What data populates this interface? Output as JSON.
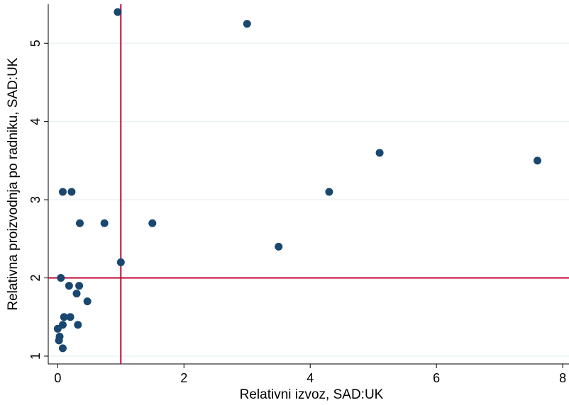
{
  "colors": {
    "point": "#1a476f",
    "reference_line": "#c10534",
    "grid": "#eaf2f3",
    "axis": "#000000",
    "background": "#ffffff"
  },
  "chart_data": {
    "type": "scatter",
    "title": "",
    "xlabel": "Relativni izvoz, SAD:UK",
    "ylabel": "Relativna proizvodnja po radniku, SAD:UK",
    "xlim": [
      -0.15,
      8.1
    ],
    "ylim": [
      0.9,
      5.5
    ],
    "xticks": [
      0,
      2,
      4,
      6,
      8
    ],
    "yticks": [
      1,
      2,
      3,
      4,
      5
    ],
    "grid": "horizontal",
    "reference_lines": {
      "x": 1,
      "y": 2
    },
    "points": [
      {
        "x": 0.95,
        "y": 5.4
      },
      {
        "x": 3.0,
        "y": 5.25
      },
      {
        "x": 5.1,
        "y": 3.6
      },
      {
        "x": 7.6,
        "y": 3.5
      },
      {
        "x": 0.08,
        "y": 3.1
      },
      {
        "x": 0.22,
        "y": 3.1
      },
      {
        "x": 4.3,
        "y": 3.1
      },
      {
        "x": 0.35,
        "y": 2.7
      },
      {
        "x": 0.74,
        "y": 2.7
      },
      {
        "x": 1.5,
        "y": 2.7
      },
      {
        "x": 3.5,
        "y": 2.4
      },
      {
        "x": 1.0,
        "y": 2.2
      },
      {
        "x": 0.05,
        "y": 2.0
      },
      {
        "x": 0.18,
        "y": 1.9
      },
      {
        "x": 0.34,
        "y": 1.9
      },
      {
        "x": 0.3,
        "y": 1.8
      },
      {
        "x": 0.47,
        "y": 1.7
      },
      {
        "x": 0.1,
        "y": 1.5
      },
      {
        "x": 0.2,
        "y": 1.5
      },
      {
        "x": 0.08,
        "y": 1.4
      },
      {
        "x": 0.32,
        "y": 1.4
      },
      {
        "x": 0.0,
        "y": 1.35
      },
      {
        "x": 0.03,
        "y": 1.25
      },
      {
        "x": 0.02,
        "y": 1.2
      },
      {
        "x": 0.08,
        "y": 1.1
      }
    ]
  }
}
